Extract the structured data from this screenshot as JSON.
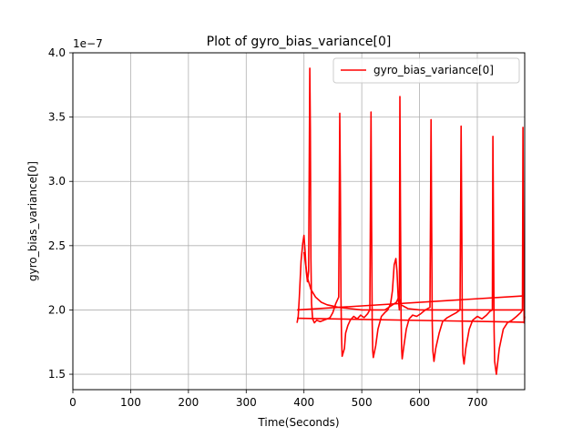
{
  "chart_data": {
    "type": "line",
    "title": "Plot of gyro_bias_variance[0]",
    "xlabel": "Time(Seconds)",
    "ylabel": "gyro_bias_variance[0]",
    "y_multiplier_label": "1e−7",
    "xlim": [
      0,
      782
    ],
    "ylim": [
      1.38,
      4.0
    ],
    "xticks": [
      0,
      100,
      200,
      300,
      400,
      500,
      600,
      700
    ],
    "xtick_labels": [
      "0",
      "100",
      "200",
      "300",
      "400",
      "500",
      "600",
      "700"
    ],
    "yticks": [
      1.5,
      2.0,
      2.5,
      3.0,
      3.5,
      4.0
    ],
    "ytick_labels": [
      "1.5",
      "2.0",
      "2.5",
      "3.0",
      "3.5",
      "4.0"
    ],
    "grid": true,
    "legend_position": "top-right",
    "color": "#ff0000",
    "series": [
      {
        "name": "gyro_bias_variance[0]",
        "x": [
          388,
          390,
          392,
          395,
          398,
          400,
          402,
          404,
          406,
          408,
          410,
          411,
          412,
          413,
          415,
          418,
          422,
          428,
          434,
          440,
          445,
          450,
          455,
          460,
          462,
          463,
          464,
          465,
          466,
          470,
          472,
          476,
          480,
          486,
          492,
          498,
          504,
          510,
          514,
          516,
          517,
          518,
          519,
          520,
          524,
          528,
          534,
          540,
          545,
          550,
          553,
          556,
          559,
          561,
          563,
          565,
          566,
          567,
          568,
          569,
          570,
          573,
          577,
          582,
          588,
          595,
          602,
          610,
          618,
          620,
          621,
          622,
          623,
          625,
          628,
          634,
          640,
          648,
          656,
          664,
          670,
          672,
          673,
          674,
          675,
          677,
          680,
          686,
          692,
          700,
          708,
          716,
          722,
          726,
          727,
          728,
          729,
          730,
          733,
          738,
          745,
          752,
          760,
          768,
          775,
          778,
          779,
          780,
          781,
          782
        ],
        "y": [
          1.9,
          1.95,
          2.1,
          2.38,
          2.52,
          2.58,
          2.45,
          2.3,
          2.22,
          2.3,
          3.88,
          3.4,
          2.4,
          2.05,
          1.93,
          1.9,
          1.92,
          1.91,
          1.92,
          1.93,
          1.94,
          1.98,
          2.05,
          2.1,
          3.53,
          2.9,
          2.1,
          1.8,
          1.64,
          1.7,
          1.82,
          1.88,
          1.92,
          1.95,
          1.93,
          1.96,
          1.94,
          1.97,
          2.0,
          3.54,
          2.7,
          1.9,
          1.68,
          1.63,
          1.72,
          1.85,
          1.95,
          1.98,
          2.0,
          2.05,
          2.15,
          2.35,
          2.4,
          2.3,
          2.1,
          2.0,
          3.66,
          2.8,
          1.95,
          1.7,
          1.62,
          1.72,
          1.85,
          1.93,
          1.96,
          1.95,
          1.97,
          2.0,
          2.02,
          3.48,
          2.6,
          1.9,
          1.68,
          1.6,
          1.7,
          1.82,
          1.91,
          1.94,
          1.96,
          1.98,
          2.0,
          3.43,
          2.7,
          1.9,
          1.65,
          1.58,
          1.7,
          1.85,
          1.92,
          1.95,
          1.93,
          1.96,
          1.99,
          2.0,
          3.35,
          2.7,
          1.85,
          1.6,
          1.5,
          1.7,
          1.85,
          1.9,
          1.92,
          1.95,
          1.98,
          2.0,
          3.42,
          2.5,
          1.9,
          1.95
        ]
      },
      {
        "name": "",
        "x": [
          388,
          782
        ],
        "y": [
          2.0,
          2.11
        ]
      },
      {
        "name": "",
        "x": [
          388,
          782
        ],
        "y": [
          1.935,
          1.905
        ]
      },
      {
        "name": "",
        "x": [
          400,
          406,
          412,
          420,
          430,
          440,
          450,
          460,
          480,
          500,
          540,
          560,
          564,
          568,
          580,
          600,
          640,
          700,
          782
        ],
        "y": [
          2.45,
          2.25,
          2.16,
          2.1,
          2.06,
          2.04,
          2.03,
          2.02,
          2.01,
          2.0,
          2.0,
          2.06,
          2.1,
          2.04,
          2.01,
          2.0,
          2.0,
          2.0,
          2.0
        ]
      }
    ]
  }
}
